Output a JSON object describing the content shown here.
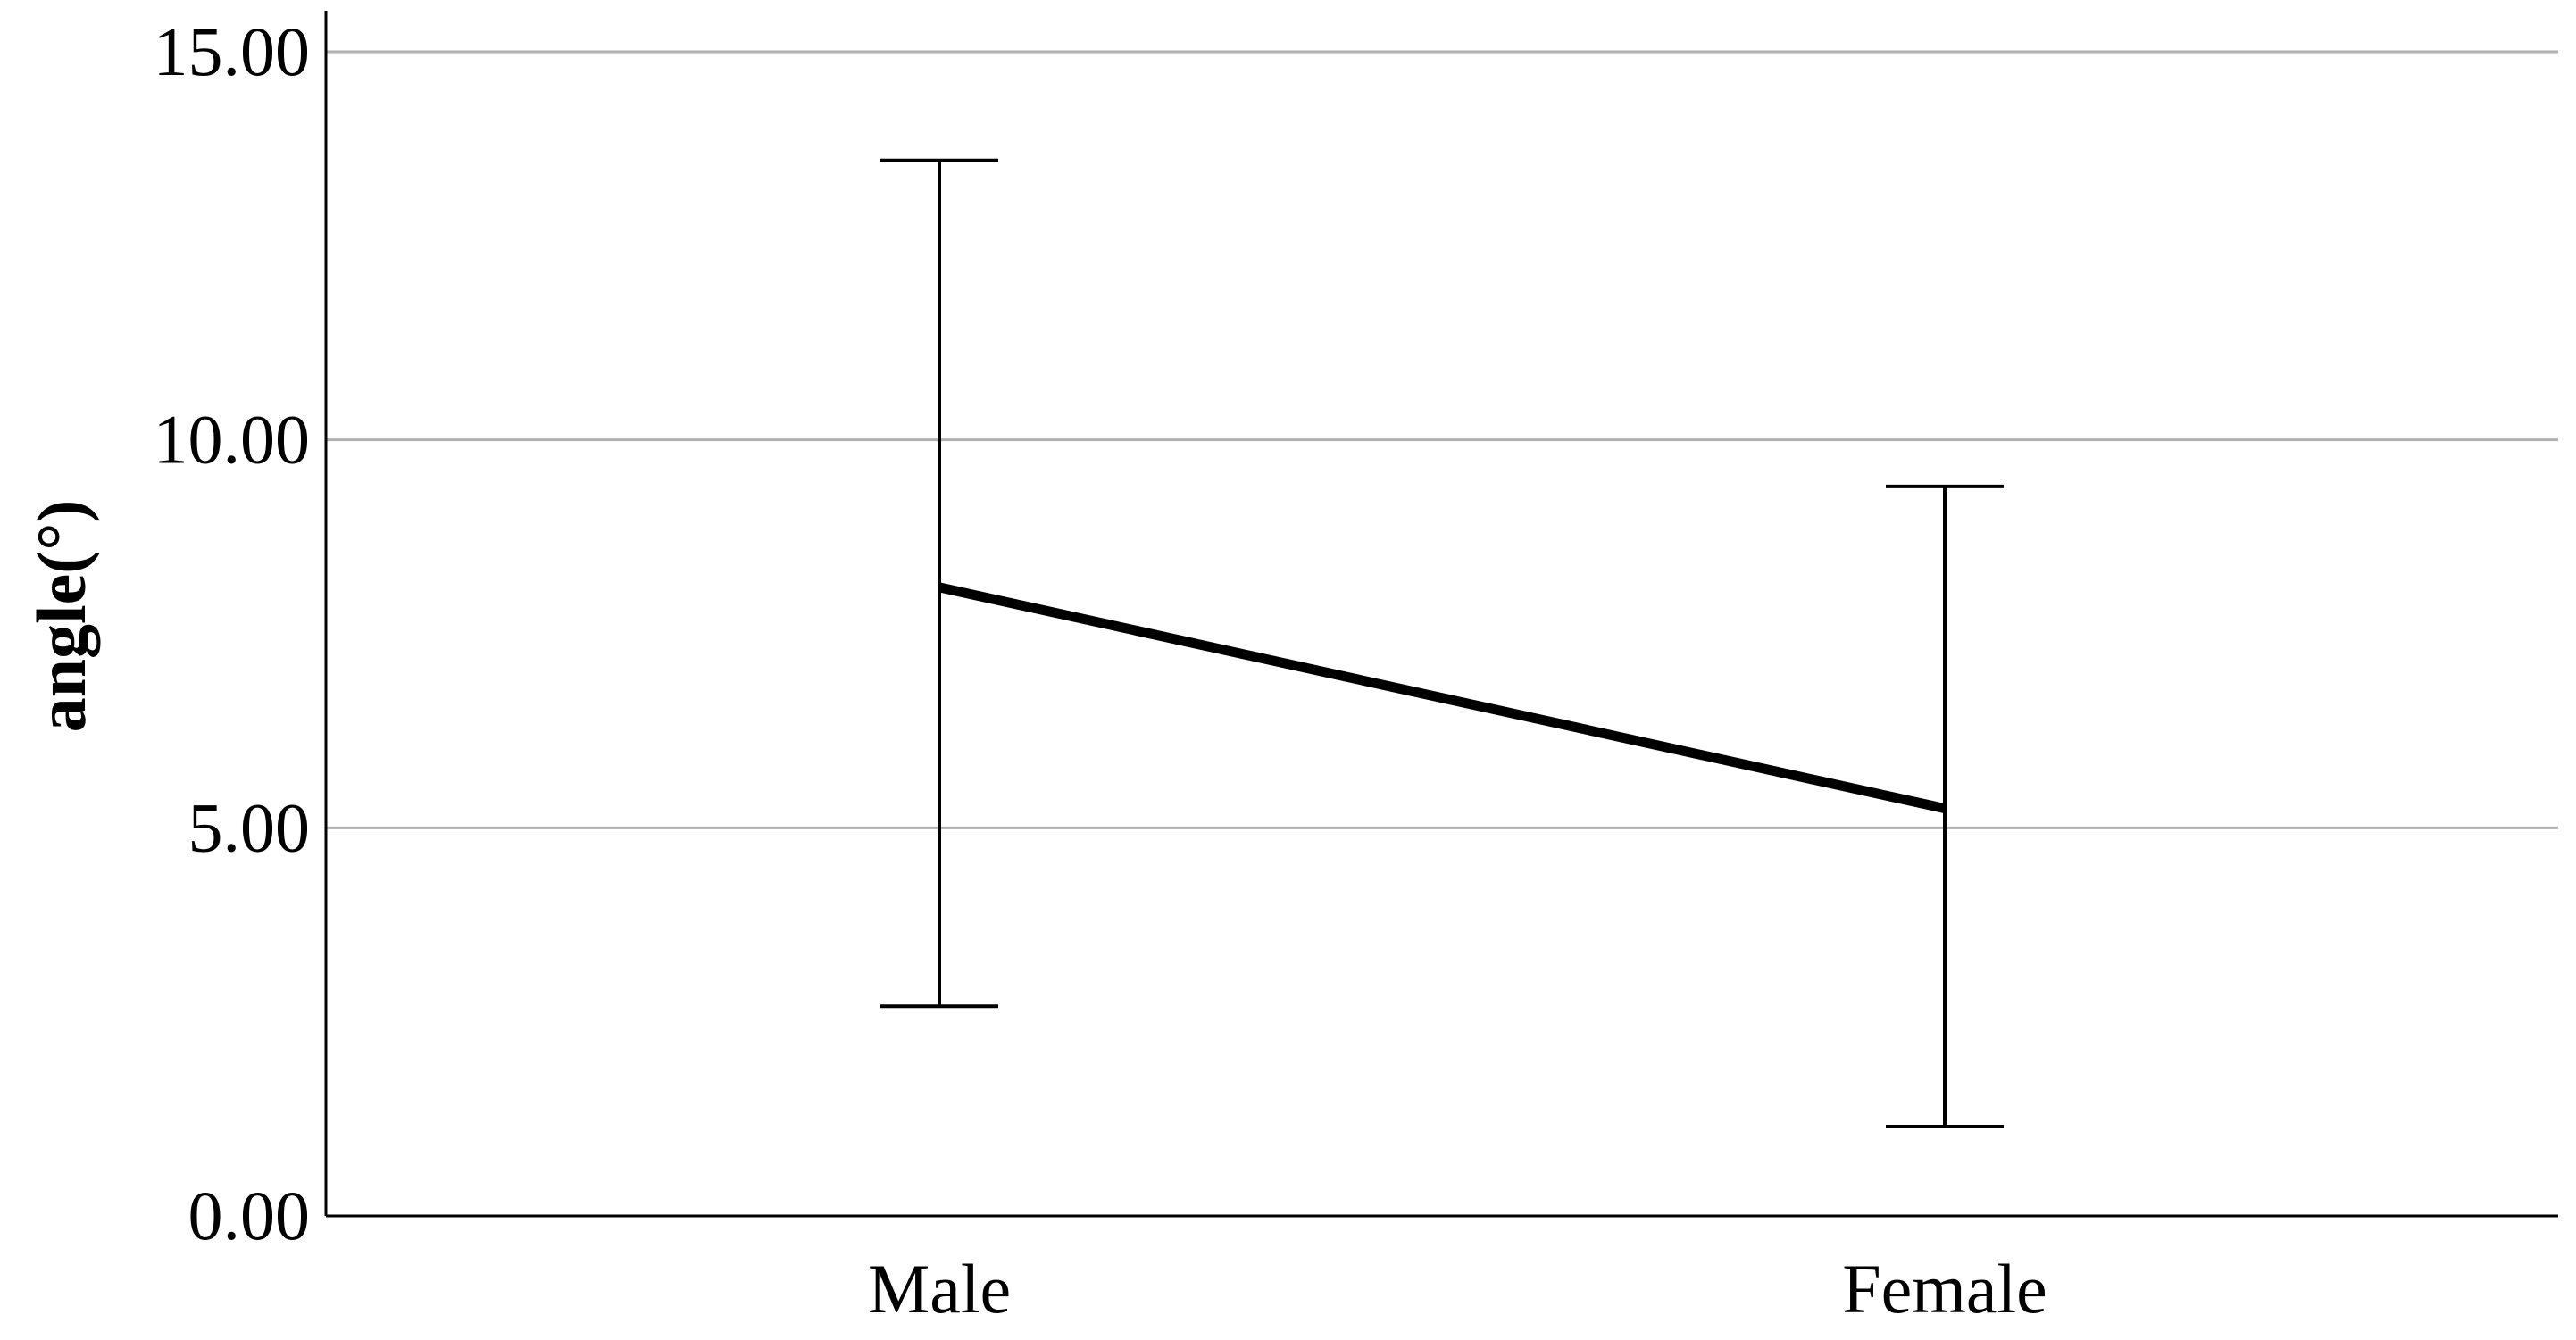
{
  "chart_data": {
    "type": "line",
    "title": "",
    "xlabel": "",
    "ylabel": "angle(°)",
    "categories": [
      "Male",
      "Female"
    ],
    "series": [
      {
        "values": [
          8.1,
          5.25
        ],
        "error_low": [
          2.7,
          1.15
        ],
        "error_high": [
          13.6,
          9.4
        ]
      }
    ],
    "ylim": [
      0,
      15
    ],
    "yticks": [
      0,
      5,
      10,
      15
    ],
    "ytick_labels": [
      "0.00",
      "5.00",
      "10.00",
      "15.00"
    ],
    "grid": true,
    "legend": "none"
  }
}
